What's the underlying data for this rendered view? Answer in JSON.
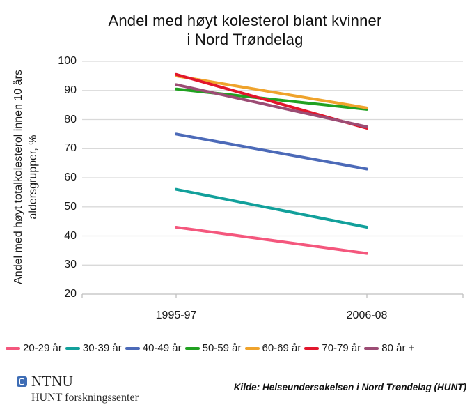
{
  "title": {
    "line1": "Andel med høyt kolesterol blant kvinner",
    "line2": "i Nord Trøndelag"
  },
  "chart_data": {
    "type": "line",
    "x_categories": [
      "1995-97",
      "2006-08"
    ],
    "yticks": [
      100,
      90,
      80,
      70,
      60,
      50,
      40,
      30,
      20
    ],
    "ylim": [
      20,
      100
    ],
    "grid": true,
    "gridline_color": "#d9d9d9",
    "axis_color": "#bfbfbf",
    "ylabel_line1": "Andel med høyt totalkolesterol innen 10 års",
    "ylabel_line2": "aldersgrupper, %",
    "legend_position": "bottom",
    "series": [
      {
        "name": "20-29 år",
        "color": "#f4577d",
        "values": [
          43,
          34
        ]
      },
      {
        "name": "30-39 år",
        "color": "#12a09b",
        "values": [
          56,
          43
        ]
      },
      {
        "name": "40-49 år",
        "color": "#4c6ab8",
        "values": [
          75,
          63
        ]
      },
      {
        "name": "50-59 år",
        "color": "#21a121",
        "values": [
          90.5,
          83.5
        ]
      },
      {
        "name": "60-69 år",
        "color": "#efa32c",
        "values": [
          95,
          84
        ]
      },
      {
        "name": "70-79 år",
        "color": "#e2162c",
        "values": [
          95.5,
          77
        ]
      },
      {
        "name": "80 år +",
        "color": "#9c4c74",
        "values": [
          92,
          77.5
        ]
      }
    ]
  },
  "footer": {
    "ntnu": "NTNU",
    "subtitle": "HUNT forskningssenter",
    "source": "Kilde: Helseundersøkelsen i Nord Trøndelag (HUNT)"
  }
}
